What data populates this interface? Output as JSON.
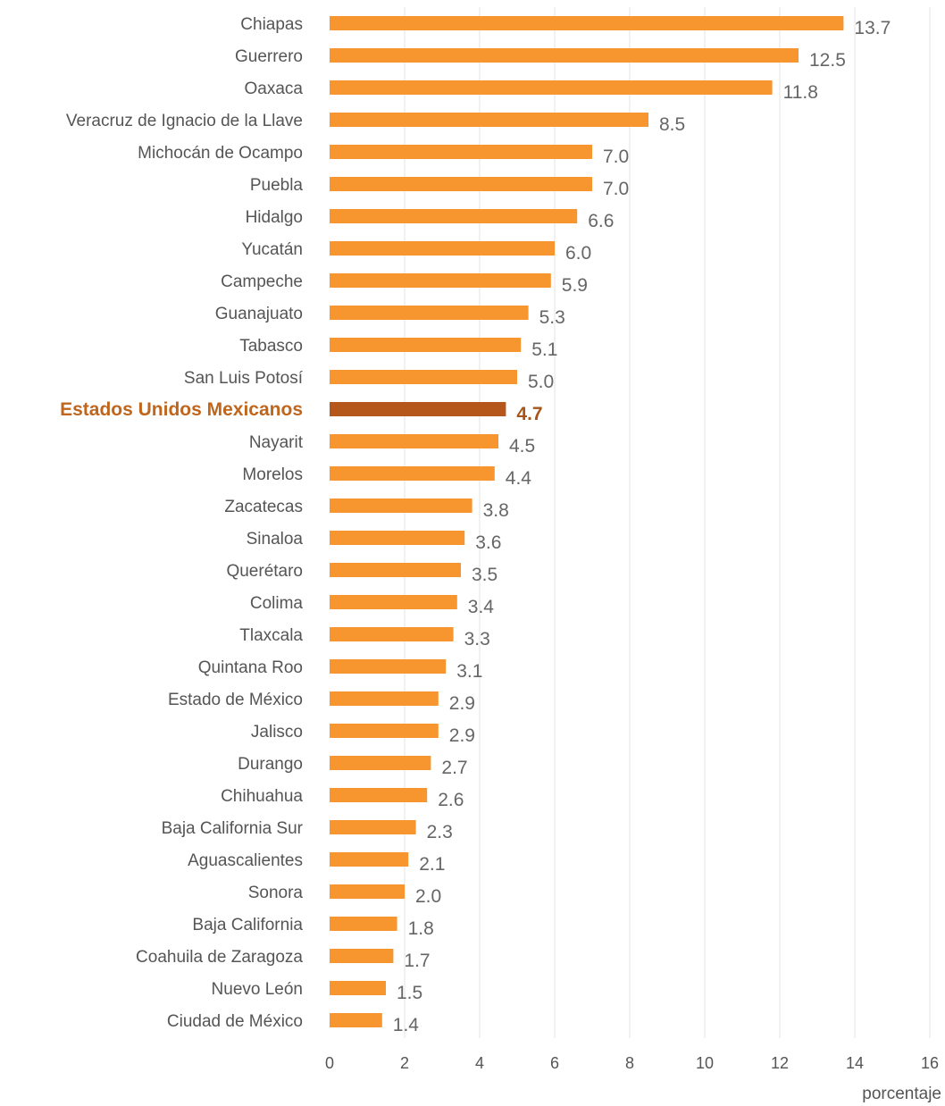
{
  "chart_data": {
    "type": "bar",
    "orientation": "horizontal",
    "xlabel": "porcentaje",
    "ylabel": "",
    "xlim": [
      0,
      16
    ],
    "xticks": [
      0,
      2,
      4,
      6,
      8,
      10,
      12,
      14,
      16
    ],
    "grid": true,
    "highlight_category": "Estados Unidos Mexicanos",
    "colors": {
      "bar": "#f7962f",
      "highlight_bar": "#b5561b",
      "highlight_text": "#c0651c"
    },
    "categories": [
      "Chiapas",
      "Guerrero",
      "Oaxaca",
      "Veracruz de Ignacio de la Llave",
      "Michocán de Ocampo",
      "Puebla",
      "Hidalgo",
      "Yucatán",
      "Campeche",
      "Guanajuato",
      "Tabasco",
      "San Luis Potosí",
      "Estados Unidos Mexicanos",
      "Nayarit",
      "Morelos",
      "Zacatecas",
      "Sinaloa",
      "Querétaro",
      "Colima",
      "Tlaxcala",
      "Quintana Roo",
      "Estado de México",
      "Jalisco",
      "Durango",
      "Chihuahua",
      "Baja California Sur",
      "Aguascalientes",
      "Sonora",
      "Baja California",
      "Coahuila de Zaragoza",
      "Nuevo León",
      "Ciudad de México"
    ],
    "values": [
      13.7,
      12.5,
      11.8,
      8.5,
      7.0,
      7.0,
      6.6,
      6.0,
      5.9,
      5.3,
      5.1,
      5.0,
      4.7,
      4.5,
      4.4,
      3.8,
      3.6,
      3.5,
      3.4,
      3.3,
      3.1,
      2.9,
      2.9,
      2.7,
      2.6,
      2.3,
      2.1,
      2.0,
      1.8,
      1.7,
      1.5,
      1.4
    ],
    "value_labels": [
      "13.7",
      "12.5",
      "11.8",
      "8.5",
      "7.0",
      "7.0",
      "6.6",
      "6.0",
      "5.9",
      "5.3",
      "5.1",
      "5.0",
      "4.7",
      "4.5",
      "4.4",
      "3.8",
      "3.6",
      "3.5",
      "3.4",
      "3.3",
      "3.1",
      "2.9",
      "2.9",
      "2.7",
      "2.6",
      "2.3",
      "2.1",
      "2.0",
      "1.8",
      "1.7",
      "1.5",
      "1.4"
    ]
  }
}
